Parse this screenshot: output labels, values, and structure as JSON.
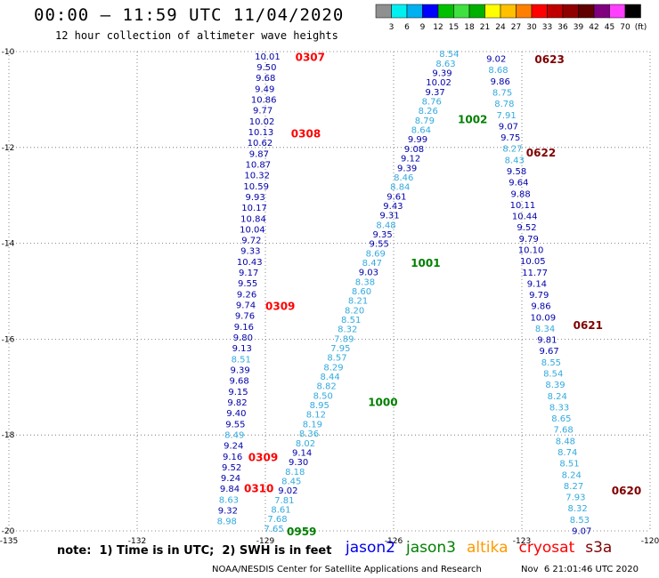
{
  "header": {
    "title": "00:00 – 11:59 UTC 11/04/2020",
    "subtitle": "12 hour collection of altimeter wave heights"
  },
  "colorbar": {
    "colors": [
      "#909090",
      "#00f0f0",
      "#00b0f0",
      "#0000ff",
      "#00c000",
      "#40e040",
      "#00b000",
      "#ffff00",
      "#ffc000",
      "#ff8000",
      "#ff0000",
      "#c00000",
      "#900000",
      "#600000",
      "#800080",
      "#ff40ff",
      "#000000"
    ],
    "labels": [
      "3",
      "6",
      "9",
      "12",
      "15",
      "18",
      "21",
      "24",
      "27",
      "30",
      "33",
      "36",
      "39",
      "42",
      "45",
      "70",
      "(ft)"
    ]
  },
  "footer": {
    "note": "note:  1) Time is in UTC;  2) SWH is in feet",
    "credit": "NOAA/NESDIS Center for Satellite Applications and Research",
    "timestamp": "Nov  6 21:01:46 UTC 2020",
    "legend": [
      {
        "name": "jason2",
        "color": "#0000ee"
      },
      {
        "name": "jason3",
        "color": "#008000"
      },
      {
        "name": "altika",
        "color": "#ff9900"
      },
      {
        "name": "cryosat",
        "color": "#ff0000"
      },
      {
        "name": "s3a",
        "color": "#800000"
      }
    ]
  },
  "chart_data": {
    "type": "scatter",
    "title": "00:00 – 11:59 UTC 11/04/2020",
    "xlim": [
      -135,
      -120
    ],
    "ylim": [
      -20,
      -10
    ],
    "x_ticks": [
      -135,
      -132,
      -129,
      -126,
      -123,
      -120
    ],
    "y_ticks": [
      -10,
      -12,
      -14,
      -16,
      -18,
      -20
    ],
    "grid": true,
    "legend_position": "bottom",
    "value_colors": {
      "low": "#33aadd",
      "high": "#0000aa",
      "threshold": 9.0
    },
    "tracks": [
      {
        "name": "track-1",
        "start": {
          "lon": -128.95,
          "lat": -10.1
        },
        "end": {
          "lon": -129.9,
          "lat": -19.8
        },
        "values": [
          10.01,
          9.5,
          9.68,
          9.49,
          10.86,
          9.77,
          10.02,
          10.13,
          10.62,
          9.87,
          10.87,
          10.32,
          10.59,
          9.93,
          10.17,
          10.84,
          10.04,
          9.72,
          9.33,
          10.43,
          9.17,
          9.55,
          9.26,
          9.74,
          9.76,
          9.16,
          9.8,
          9.13,
          8.51,
          9.39,
          9.68,
          9.15,
          9.82,
          9.4,
          9.55,
          8.49,
          9.24,
          9.16,
          9.52,
          9.24,
          9.84,
          8.63,
          9.32,
          8.98
        ],
        "pass_labels": [
          {
            "text": "0307",
            "lat": -10.1,
            "lon": -128.3,
            "color": "#ff0000"
          },
          {
            "text": "0308",
            "lat": -11.7,
            "lon": -128.4,
            "color": "#ff0000"
          },
          {
            "text": "0309",
            "lat": -15.3,
            "lon": -129.0,
            "color": "#ff0000"
          },
          {
            "text": "0309",
            "lat": -18.45,
            "lon": -129.4,
            "color": "#ff0000"
          },
          {
            "text": "0310",
            "lat": -19.1,
            "lon": -129.5,
            "color": "#ff0000"
          }
        ]
      },
      {
        "name": "track-2",
        "start": {
          "lon": -124.7,
          "lat": -10.05
        },
        "end": {
          "lon": -128.8,
          "lat": -19.95
        },
        "values": [
          8.54,
          8.63,
          9.39,
          10.02,
          9.37,
          8.76,
          8.26,
          8.79,
          8.64,
          9.99,
          9.08,
          9.12,
          9.39,
          8.46,
          8.84,
          9.61,
          9.43,
          9.31,
          8.48,
          9.35,
          9.55,
          8.69,
          8.47,
          9.03,
          8.38,
          8.6,
          8.21,
          8.2,
          8.51,
          8.32,
          7.89,
          7.95,
          8.57,
          8.29,
          8.44,
          8.82,
          8.5,
          8.95,
          8.12,
          8.19,
          8.36,
          8.02,
          9.14,
          9.3,
          8.18,
          8.45,
          9.02,
          7.81,
          8.61,
          7.68,
          7.65
        ],
        "pass_labels": [
          {
            "text": "1002",
            "lat": -11.4,
            "lon": -124.5,
            "color": "#008000"
          },
          {
            "text": "1001",
            "lat": -14.4,
            "lon": -125.6,
            "color": "#008000"
          },
          {
            "text": "1000",
            "lat": -17.3,
            "lon": -126.6,
            "color": "#008000"
          },
          {
            "text": "0959",
            "lat": -20.0,
            "lon": -128.5,
            "color": "#008000"
          }
        ]
      },
      {
        "name": "track-3",
        "start": {
          "lon": -123.6,
          "lat": -10.15
        },
        "end": {
          "lon": -121.6,
          "lat": -20.0
        },
        "values": [
          9.02,
          8.68,
          9.86,
          8.75,
          8.78,
          7.91,
          9.07,
          9.75,
          8.27,
          8.43,
          9.58,
          9.64,
          9.88,
          10.11,
          10.44,
          9.52,
          9.79,
          10.1,
          10.05,
          11.77,
          9.14,
          9.79,
          9.86,
          10.09,
          8.34,
          9.81,
          9.67,
          8.55,
          8.54,
          8.39,
          8.24,
          8.33,
          8.65,
          7.68,
          8.48,
          8.74,
          8.51,
          8.24,
          8.27,
          7.93,
          8.32,
          8.53,
          9.07
        ],
        "pass_labels": [
          {
            "text": "0623",
            "lat": -10.15,
            "lon": -122.7,
            "color": "#800000"
          },
          {
            "text": "0622",
            "lat": -12.1,
            "lon": -122.9,
            "color": "#800000"
          },
          {
            "text": "0621",
            "lat": -15.7,
            "lon": -121.8,
            "color": "#800000"
          },
          {
            "text": "0620",
            "lat": -19.15,
            "lon": -120.9,
            "color": "#800000"
          }
        ]
      }
    ]
  }
}
